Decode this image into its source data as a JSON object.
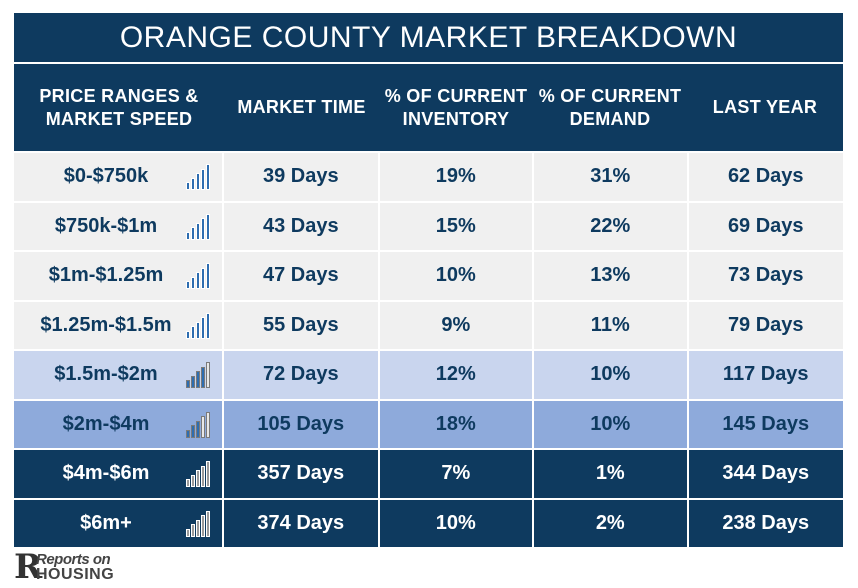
{
  "title": "ORANGE COUNTY MARKET BREAKDOWN",
  "headers": {
    "c1": "PRICE RANGES & MARKET SPEED",
    "c2": "MARKET TIME",
    "c3": "% OF CURRENT INVENTORY",
    "c4": "% OF CURRENT DEMAND",
    "c5": "LAST YEAR"
  },
  "colors": {
    "header_bg": "#0e3a5f",
    "row_light": "#f0f0f0",
    "row_pale_blue": "#c9d5ee",
    "row_mid_blue": "#8eaadb",
    "row_dark": "#0e3a5f",
    "text_dark": "#0e3a5f",
    "text_light": "#ffffff",
    "speed_bar_blue": "#2e6db0",
    "speed_bar_gray": "#9a9a9a"
  },
  "chart_data": {
    "type": "table",
    "title": "ORANGE COUNTY MARKET BREAKDOWN",
    "columns": [
      "PRICE RANGES & MARKET SPEED",
      "MARKET TIME",
      "% OF CURRENT INVENTORY",
      "% OF CURRENT DEMAND",
      "LAST YEAR"
    ],
    "rows": [
      {
        "range": "$0-$750k",
        "market_time": "39 Days",
        "inventory": "19%",
        "demand": "31%",
        "last_year": "62 Days",
        "speed_level": 5,
        "band": "light"
      },
      {
        "range": "$750k-$1m",
        "market_time": "43 Days",
        "inventory": "15%",
        "demand": "22%",
        "last_year": "69 Days",
        "speed_level": 5,
        "band": "light"
      },
      {
        "range": "$1m-$1.25m",
        "market_time": "47 Days",
        "inventory": "10%",
        "demand": "13%",
        "last_year": "73 Days",
        "speed_level": 5,
        "band": "light"
      },
      {
        "range": "$1.25m-$1.5m",
        "market_time": "55 Days",
        "inventory": "9%",
        "demand": "11%",
        "last_year": "79 Days",
        "speed_level": 5,
        "band": "light"
      },
      {
        "range": "$1.5m-$2m",
        "market_time": "72 Days",
        "inventory": "12%",
        "demand": "10%",
        "last_year": "117 Days",
        "speed_level": 4,
        "band": "pale_blue"
      },
      {
        "range": "$2m-$4m",
        "market_time": "105 Days",
        "inventory": "18%",
        "demand": "10%",
        "last_year": "145 Days",
        "speed_level": 3,
        "band": "mid_blue"
      },
      {
        "range": "$4m-$6m",
        "market_time": "357 Days",
        "inventory": "7%",
        "demand": "1%",
        "last_year": "344 Days",
        "speed_level": 0,
        "band": "dark"
      },
      {
        "range": "$6m+",
        "market_time": "374 Days",
        "inventory": "10%",
        "demand": "2%",
        "last_year": "238 Days",
        "speed_level": 0,
        "band": "dark"
      }
    ]
  },
  "logo": {
    "line1": "Reports on",
    "line2": "HOUSING"
  }
}
